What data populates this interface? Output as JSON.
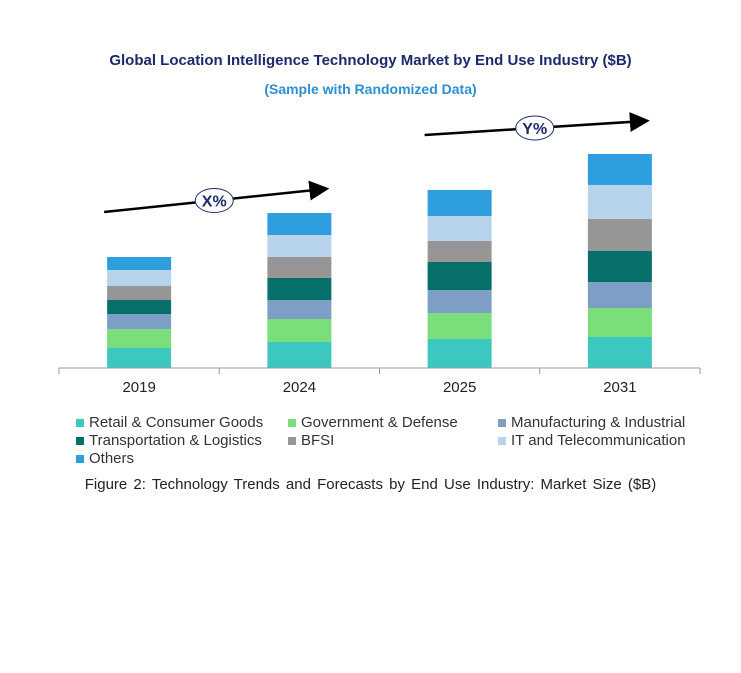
{
  "chart_data": {
    "type": "bar",
    "stacked": true,
    "title": "Global Location Intelligence Technology Market by End Use Industry ($B)",
    "subtitle": "(Sample with Randomized Data)",
    "categories": [
      "2019",
      "2024",
      "2025",
      "2031"
    ],
    "series": [
      {
        "name": "Retail & Consumer Goods",
        "color": "#3cc7c0",
        "values": [
          20,
          26,
          29,
          31
        ]
      },
      {
        "name": "Government & Defense",
        "color": "#7ade7a",
        "values": [
          19,
          23,
          26,
          29
        ]
      },
      {
        "name": "Manufacturing & Industrial",
        "color": "#7d9fc6",
        "values": [
          15,
          19,
          23,
          26
        ]
      },
      {
        "name": "Transportation & Logistics",
        "color": "#08706a",
        "values": [
          14,
          22,
          28,
          31
        ]
      },
      {
        "name": "BFSI",
        "color": "#969696",
        "values": [
          14,
          21,
          21,
          32
        ]
      },
      {
        "name": "IT and Telecommunication",
        "color": "#b8d3ec",
        "values": [
          16,
          22,
          25,
          34
        ]
      },
      {
        "name": "Others",
        "color": "#2e9fde",
        "values": [
          13,
          22,
          26,
          31
        ]
      }
    ],
    "annotations": [
      {
        "label": "X%",
        "from_category": "2019",
        "to_category": "2024"
      },
      {
        "label": "Y%",
        "from_category": "2025",
        "to_category": "2031"
      }
    ],
    "ylim": [
      0,
      225
    ],
    "grid": false,
    "legend_position": "bottom",
    "xlabel": "",
    "ylabel": ""
  },
  "caption": "Figure 2: Technology Trends and Forecasts by End Use Industry: Market Size ($B)"
}
